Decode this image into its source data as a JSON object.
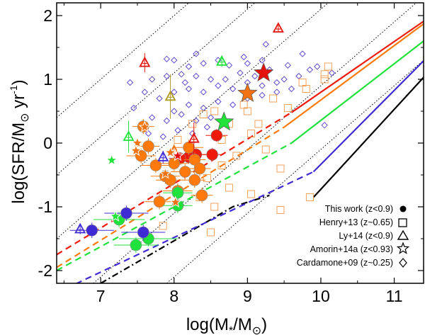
{
  "chart_data": {
    "type": "scatter",
    "title": "",
    "xlabel_main": "log(M",
    "xlabel_sub1": "*",
    "xlabel_mid": "/M",
    "xlabel_sub2": "⊙",
    "xlabel_end": ")",
    "ylabel_main": "log(SFR/M",
    "ylabel_sub": "⊙",
    "ylabel_mid": " yr",
    "ylabel_sup": "-1",
    "ylabel_end": ")",
    "xlim": [
      6.4,
      11.4
    ],
    "ylim": [
      -2.2,
      2.2
    ],
    "xticks": [
      7,
      8,
      9,
      10,
      11
    ],
    "yticks": [
      -2,
      -1,
      0,
      1,
      2
    ],
    "xtick_labels": [
      "7",
      "8",
      "9",
      "10",
      "11"
    ],
    "ytick_labels": [
      "-2",
      "-1",
      "0",
      "1",
      "2"
    ],
    "colors": {
      "z0": "#000000",
      "z1": "#3f2bd4",
      "z2": "#1fe23c",
      "z3": "#ff7a0a",
      "z4": "#ee1a0a",
      "cardamone": "#5a3fd0",
      "henry": "#f5a25a",
      "ly_olive": "#b09a20",
      "amorin_orange": "#f07212",
      "amorin_red": "#e4120a",
      "amorin_green": "#22e33a"
    },
    "legend": [
      {
        "label": "This work (z<0.9)",
        "marker": "filled-circle"
      },
      {
        "label": "Henry+13 (z~0.65)",
        "marker": "open-square"
      },
      {
        "label": "Ly+14 (z<0.9)",
        "marker": "open-triangle"
      },
      {
        "label": "Amorin+14a (z<0.93)",
        "marker": "open-star"
      },
      {
        "label": "Cardamone+09 (z~0.25)",
        "marker": "open-diamond"
      }
    ],
    "main_sequence_lines": [
      {
        "name": "ms-z0",
        "color": "#000000",
        "solid": [
          [
            9.9,
            -0.85
          ],
          [
            11.4,
            1.03
          ]
        ],
        "dashed": [
          [
            7.0,
            -2.2
          ],
          [
            8.8,
            -1.0
          ],
          [
            9.3,
            -0.82
          ]
        ]
      },
      {
        "name": "ms-z1",
        "color": "#3f2bd4",
        "solid": [
          [
            9.9,
            -0.45
          ],
          [
            11.4,
            1.29
          ]
        ],
        "dashed": [
          [
            6.4,
            -2.35
          ],
          [
            9.9,
            -0.45
          ]
        ]
      },
      {
        "name": "ms-z2",
        "color": "#1fe23c",
        "solid": [
          [
            9.6,
            0.0
          ],
          [
            11.4,
            1.6
          ]
        ],
        "dashed": [
          [
            6.4,
            -2.0
          ],
          [
            9.6,
            0.0
          ]
        ]
      },
      {
        "name": "ms-z3",
        "color": "#ff7a0a",
        "solid": [
          [
            9.5,
            0.25
          ],
          [
            11.4,
            1.87
          ]
        ],
        "dashed": [
          [
            6.4,
            -1.95
          ],
          [
            9.5,
            0.25
          ]
        ]
      },
      {
        "name": "ms-z4",
        "color": "#ee1a0a",
        "solid": [
          [
            9.6,
            0.48
          ],
          [
            11.4,
            1.91
          ]
        ],
        "dashed": [
          [
            6.4,
            -1.75
          ],
          [
            9.6,
            0.48
          ]
        ]
      }
    ],
    "dotted_lines": [
      {
        "name": "dotted-1",
        "p1": [
          6.4,
          0.4
        ],
        "p2": [
          8.2,
          2.2
        ]
      },
      {
        "name": "dotted-2",
        "p1": [
          6.4,
          -0.5
        ],
        "p2": [
          9.1,
          2.2
        ]
      },
      {
        "name": "dotted-3",
        "p1": [
          6.4,
          -1.5
        ],
        "p2": [
          10.1,
          2.2
        ]
      },
      {
        "name": "dotted-4",
        "p1": [
          6.9,
          -2.2
        ],
        "p2": [
          11.3,
          2.2
        ]
      },
      {
        "name": "dotted-5",
        "p1": [
          7.9,
          -2.2
        ],
        "p2": [
          11.4,
          1.3
        ]
      }
    ],
    "series": [
      {
        "name": "This work (z<0.9)",
        "marker": "filled-circle",
        "points": [
          {
            "x": 8.3,
            "y": -0.18,
            "c": "z4",
            "xe": 0.15,
            "ye": 0.1
          },
          {
            "x": 8.2,
            "y": -0.22,
            "c": "z4",
            "xe": 0.15,
            "ye": 0.1
          },
          {
            "x": 8.08,
            "y": -0.24,
            "c": "z4",
            "xe": 0.15,
            "ye": 0.1
          },
          {
            "x": 8.58,
            "y": 0.12,
            "c": "z4",
            "xe": 0.15,
            "ye": 0.1
          },
          {
            "x": 8.52,
            "y": -0.18,
            "c": "z4",
            "xe": 0.15,
            "ye": 0.1
          },
          {
            "x": 7.58,
            "y": 0.26,
            "c": "z3",
            "xe": 0.15,
            "ye": 0.12
          },
          {
            "x": 7.65,
            "y": -0.05,
            "c": "z3",
            "xe": 0.15,
            "ye": 0.12
          },
          {
            "x": 7.55,
            "y": -0.2,
            "c": "z3",
            "xe": 0.2,
            "ye": 0.12
          },
          {
            "x": 7.75,
            "y": -0.35,
            "c": "z3",
            "xe": 0.2,
            "ye": 0.12
          },
          {
            "x": 8.2,
            "y": -0.07,
            "c": "z3",
            "xe": 0.2,
            "ye": 0.12
          },
          {
            "x": 8.28,
            "y": -0.26,
            "c": "z3",
            "xe": 0.15,
            "ye": 0.12
          },
          {
            "x": 8.0,
            "y": -0.32,
            "c": "z3",
            "xe": 0.2,
            "ye": 0.12
          },
          {
            "x": 7.88,
            "y": -0.52,
            "c": "z3",
            "xe": 0.2,
            "ye": 0.12
          },
          {
            "x": 8.15,
            "y": -0.45,
            "c": "z3",
            "xe": 0.2,
            "ye": 0.12
          },
          {
            "x": 8.35,
            "y": -0.4,
            "c": "z3",
            "xe": 0.15,
            "ye": 0.12
          },
          {
            "x": 7.95,
            "y": -0.58,
            "c": "z3",
            "xe": 0.2,
            "ye": 0.12
          },
          {
            "x": 8.28,
            "y": -0.58,
            "c": "z3",
            "xe": 0.15,
            "ye": 0.12
          },
          {
            "x": 8.05,
            "y": -0.75,
            "c": "z3",
            "xe": 0.2,
            "ye": 0.12
          },
          {
            "x": 8.38,
            "y": -0.82,
            "c": "z3",
            "xe": 0.15,
            "ye": 0.12
          },
          {
            "x": 7.8,
            "y": -0.92,
            "c": "z3",
            "xe": 0.2,
            "ye": 0.12
          },
          {
            "x": 8.05,
            "y": -0.78,
            "c": "z2",
            "xe": 0.2,
            "ye": 0.12
          },
          {
            "x": 8.05,
            "y": -0.98,
            "c": "z2",
            "xe": 0.2,
            "ye": 0.12
          },
          {
            "x": 7.25,
            "y": -1.2,
            "c": "z2",
            "xe": 0.35,
            "ye": 0.12
          },
          {
            "x": 7.65,
            "y": -1.5,
            "c": "z2",
            "xe": 0.4,
            "ye": 0.12
          },
          {
            "x": 7.48,
            "y": -1.6,
            "c": "z2",
            "xe": 0.3,
            "ye": 0.12
          },
          {
            "x": 7.35,
            "y": -1.1,
            "c": "z1",
            "xe": 0.3,
            "ye": 0.12
          },
          {
            "x": 7.58,
            "y": -1.4,
            "c": "z1",
            "xe": 0.3,
            "ye": 0.12
          },
          {
            "x": 6.88,
            "y": -1.37,
            "c": "z1",
            "xe": 0.3,
            "ye": 0.12
          }
        ]
      },
      {
        "name": "Henry+13 (z~0.65)",
        "marker": "open-square",
        "points": [
          {
            "x": 8.25,
            "y": 0.3
          },
          {
            "x": 8.55,
            "y": 0.5
          },
          {
            "x": 8.75,
            "y": 0.3
          },
          {
            "x": 8.95,
            "y": 0.6
          },
          {
            "x": 9.15,
            "y": 0.3
          },
          {
            "x": 9.35,
            "y": 0.7
          },
          {
            "x": 9.05,
            "y": 0.15
          },
          {
            "x": 8.65,
            "y": 0.05
          },
          {
            "x": 9.55,
            "y": 0.55
          },
          {
            "x": 9.75,
            "y": 0.95
          },
          {
            "x": 10.05,
            "y": 1.0
          },
          {
            "x": 10.1,
            "y": 1.2
          },
          {
            "x": 8.85,
            "y": -0.2
          },
          {
            "x": 9.25,
            "y": -0.1
          },
          {
            "x": 8.45,
            "y": -0.55
          },
          {
            "x": 8.75,
            "y": -0.7
          },
          {
            "x": 9.05,
            "y": -0.8
          },
          {
            "x": 9.45,
            "y": -0.4
          },
          {
            "x": 8.35,
            "y": -0.85
          },
          {
            "x": 8.55,
            "y": -1.0
          },
          {
            "x": 9.85,
            "y": -0.85
          },
          {
            "x": 9.45,
            "y": -1.05
          },
          {
            "x": 7.85,
            "y": -1.3
          },
          {
            "x": 8.5,
            "y": -1.4
          },
          {
            "x": 8.05,
            "y": 0.05
          },
          {
            "x": 8.4,
            "y": 0.45
          },
          {
            "x": 9.8,
            "y": 0.85
          },
          {
            "x": 10.05,
            "y": 1.08
          },
          {
            "x": 8.65,
            "y": -0.35
          },
          {
            "x": 9.0,
            "y": 0.5
          }
        ]
      },
      {
        "name": "Ly+14 (z<0.9)",
        "marker": "open-triangle",
        "points": [
          {
            "x": 7.6,
            "y": 1.26,
            "c": "#e4120a",
            "ye": 0.15
          },
          {
            "x": 9.42,
            "y": 1.8,
            "c": "#e4120a",
            "ye": 0.05
          },
          {
            "x": 8.27,
            "y": 0.07,
            "c": "#e4120a",
            "ye": 0.25
          },
          {
            "x": 7.95,
            "y": 0.73,
            "c": "#b09a20",
            "ye": 0.35
          },
          {
            "x": 8.65,
            "y": 1.28,
            "c": "#1fe23c",
            "ye": 0.08
          },
          {
            "x": 7.38,
            "y": 0.1,
            "c": "#1fe23c",
            "ye": 0.25
          },
          {
            "x": 8.0,
            "y": -0.12,
            "c": "#f07212",
            "ye": 0.1
          },
          {
            "x": 7.85,
            "y": -0.22,
            "c": "#3f2bd4",
            "ye": 0.1
          },
          {
            "x": 6.72,
            "y": -1.35,
            "c": "#3f2bd4",
            "ye": 0.08
          }
        ]
      },
      {
        "name": "Amorin+14a (z<0.93)",
        "marker": "filled-star",
        "points": [
          {
            "x": 9.22,
            "y": 1.1,
            "c": "#e4120a",
            "size": 1.0
          },
          {
            "x": 9.0,
            "y": 0.78,
            "c": "#f07212",
            "size": 1.0
          },
          {
            "x": 8.68,
            "y": 0.33,
            "c": "#22e33a",
            "size": 1.0
          },
          {
            "x": 7.6,
            "y": 0.25,
            "c": "#f07212",
            "size": 0.55
          },
          {
            "x": 7.5,
            "y": 0.0,
            "c": "#f07212",
            "size": 0.55
          },
          {
            "x": 7.48,
            "y": -0.12,
            "c": "#f07212",
            "size": 0.55
          },
          {
            "x": 7.88,
            "y": -0.48,
            "c": "#f07212",
            "size": 0.55
          },
          {
            "x": 7.95,
            "y": -0.15,
            "c": "#f07212",
            "size": 0.55
          },
          {
            "x": 8.02,
            "y": -0.93,
            "c": "#f07212",
            "size": 0.55
          },
          {
            "x": 8.05,
            "y": -0.2,
            "c": "#e4120a",
            "size": 0.55
          },
          {
            "x": 7.15,
            "y": -0.27,
            "c": "#22e33a",
            "size": 0.55
          },
          {
            "x": 7.2,
            "y": -1.15,
            "c": "#22e33a",
            "size": 0.55
          }
        ]
      },
      {
        "name": "Cardamone+09 (z~0.25)",
        "marker": "open-diamond",
        "points": [
          {
            "x": 7.7,
            "y": 1.0
          },
          {
            "x": 7.9,
            "y": 1.05
          },
          {
            "x": 8.1,
            "y": 1.08
          },
          {
            "x": 8.3,
            "y": 1.05
          },
          {
            "x": 8.5,
            "y": 1.0
          },
          {
            "x": 8.7,
            "y": 1.0
          },
          {
            "x": 8.9,
            "y": 1.1
          },
          {
            "x": 9.1,
            "y": 1.05
          },
          {
            "x": 9.3,
            "y": 1.15
          },
          {
            "x": 9.5,
            "y": 1.0
          },
          {
            "x": 9.7,
            "y": 1.05
          },
          {
            "x": 9.85,
            "y": 1.15
          },
          {
            "x": 7.8,
            "y": 0.7
          },
          {
            "x": 8.0,
            "y": 0.8
          },
          {
            "x": 8.2,
            "y": 0.85
          },
          {
            "x": 8.4,
            "y": 0.8
          },
          {
            "x": 8.6,
            "y": 0.9
          },
          {
            "x": 8.8,
            "y": 0.85
          },
          {
            "x": 9.0,
            "y": 0.95
          },
          {
            "x": 9.2,
            "y": 0.9
          },
          {
            "x": 9.4,
            "y": 0.95
          },
          {
            "x": 9.6,
            "y": 0.85
          },
          {
            "x": 8.0,
            "y": 0.5
          },
          {
            "x": 8.2,
            "y": 0.6
          },
          {
            "x": 8.4,
            "y": 0.55
          },
          {
            "x": 8.6,
            "y": 0.65
          },
          {
            "x": 8.8,
            "y": 0.6
          },
          {
            "x": 9.0,
            "y": 0.7
          },
          {
            "x": 9.2,
            "y": 0.75
          },
          {
            "x": 9.4,
            "y": 0.8
          },
          {
            "x": 7.7,
            "y": 0.4
          },
          {
            "x": 7.9,
            "y": 0.35
          },
          {
            "x": 8.1,
            "y": 0.45
          },
          {
            "x": 8.3,
            "y": 0.35
          },
          {
            "x": 8.5,
            "y": 0.4
          },
          {
            "x": 7.65,
            "y": 0.15
          },
          {
            "x": 7.85,
            "y": 0.1
          },
          {
            "x": 8.05,
            "y": 0.2
          },
          {
            "x": 8.25,
            "y": 0.15
          },
          {
            "x": 8.45,
            "y": 0.25
          },
          {
            "x": 8.2,
            "y": 1.2
          },
          {
            "x": 8.4,
            "y": 1.25
          },
          {
            "x": 8.6,
            "y": 1.3
          },
          {
            "x": 9.0,
            "y": 1.25
          },
          {
            "x": 9.2,
            "y": 1.3
          },
          {
            "x": 8.0,
            "y": 1.3
          },
          {
            "x": 9.25,
            "y": 1.55
          },
          {
            "x": 9.95,
            "y": 1.2
          },
          {
            "x": 10.05,
            "y": 0.28
          },
          {
            "x": 10.15,
            "y": 1.1
          },
          {
            "x": 7.45,
            "y": 0.55
          },
          {
            "x": 7.4,
            "y": 0.95
          },
          {
            "x": 7.9,
            "y": 1.32
          },
          {
            "x": 8.3,
            "y": 1.4
          },
          {
            "x": 8.75,
            "y": 1.22
          },
          {
            "x": 9.55,
            "y": 1.22
          },
          {
            "x": 9.75,
            "y": 1.4
          },
          {
            "x": 8.95,
            "y": 1.35
          },
          {
            "x": 7.6,
            "y": 0.8
          },
          {
            "x": 8.15,
            "y": 0.95
          }
        ]
      }
    ]
  }
}
